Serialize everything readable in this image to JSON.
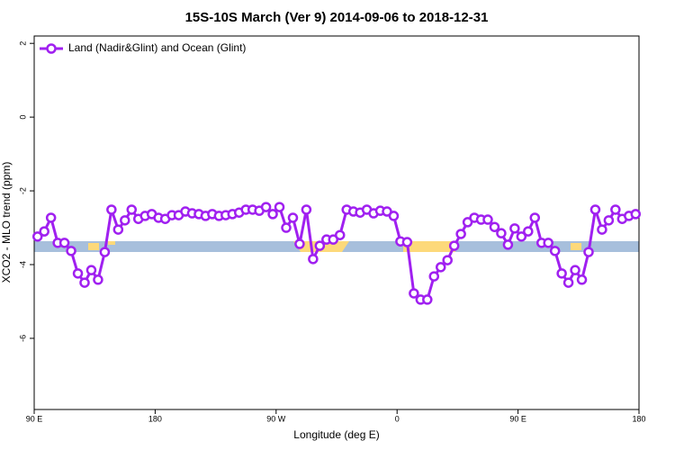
{
  "chart_data": {
    "type": "line",
    "title": "15S-10S March (Ver 9)   2014-09-06 to 2018-12-31",
    "x_label": "Longitude (deg E)",
    "y_label": "XCO2 - MLO trend (ppm)",
    "x": [
      92.5,
      97.5,
      102.5,
      107.5,
      112.5,
      117.5,
      122.5,
      127.5,
      132.5,
      137.5,
      142.5,
      147.5,
      152.5,
      157.5,
      162.5,
      167.5,
      172.5,
      177.5,
      182.5,
      187.5,
      192.5,
      197.5,
      202.5,
      207.5,
      212.5,
      217.5,
      222.5,
      227.5,
      232.5,
      237.5,
      242.5,
      247.5,
      252.5,
      257.5,
      262.5,
      267.5,
      272.5,
      277.5,
      282.5,
      287.5,
      292.5,
      297.5,
      302.5,
      307.5,
      312.5,
      317.5,
      322.5,
      327.5,
      332.5,
      337.5,
      342.5,
      347.5,
      352.5,
      357.5,
      362.5,
      367.5,
      372.5,
      377.5,
      382.5,
      387.5,
      392.5,
      397.5,
      402.5,
      407.5,
      412.5,
      417.5,
      422.5,
      427.5,
      432.5,
      437.5,
      442.5,
      447.5,
      452.5,
      457.5,
      462.5,
      467.5,
      472.5,
      477.5,
      482.5,
      487.5,
      492.5,
      497.5,
      502.5,
      507.5,
      512.5,
      517.5,
      522.5,
      527.5,
      532.5,
      537.5
    ],
    "series": [
      {
        "name": "Land (Nadir&Glint) and Ocean (Glint)",
        "color": "#a020f0",
        "values": [
          -3.24,
          -3.1,
          -2.73,
          -3.41,
          -3.41,
          -3.63,
          -4.24,
          -4.49,
          -4.15,
          -4.41,
          -3.66,
          -2.51,
          -3.05,
          -2.8,
          -2.51,
          -2.76,
          -2.68,
          -2.63,
          -2.73,
          -2.76,
          -2.66,
          -2.66,
          -2.56,
          -2.61,
          -2.63,
          -2.68,
          -2.63,
          -2.68,
          -2.66,
          -2.63,
          -2.59,
          -2.51,
          -2.51,
          -2.54,
          -2.44,
          -2.63,
          -2.44,
          -3.0,
          -2.73,
          -3.44,
          -2.51,
          -3.85,
          -3.49,
          -3.32,
          -3.32,
          -3.2,
          -2.51,
          -2.56,
          -2.59,
          -2.51,
          -2.61,
          -2.54,
          -2.56,
          -2.68,
          -3.37,
          -3.39,
          -4.78,
          -4.95,
          -4.95,
          -4.32,
          -4.07,
          -3.88,
          -3.49,
          -3.17,
          -2.85,
          -2.73,
          -2.78,
          -2.78,
          -2.98,
          -3.15,
          -3.46,
          -3.02,
          -3.24,
          -3.1,
          -2.73,
          -3.41,
          -3.41,
          -3.63,
          -4.24,
          -4.49,
          -4.15,
          -4.41,
          -3.66,
          -2.51,
          -3.05,
          -2.8,
          -2.51,
          -2.76,
          -2.68,
          -2.63
        ]
      }
    ],
    "xlim": [
      90,
      540
    ],
    "xticks": [
      {
        "value": 90,
        "label": "90 E"
      },
      180,
      {
        "value": 270,
        "label": "90 W"
      },
      {
        "value": 360,
        "label": "0"
      },
      {
        "value": 450,
        "label": "90 E"
      },
      {
        "value": 540,
        "label": "180"
      }
    ],
    "ylim": [
      -7.93,
      2.2
    ],
    "yticks": [
      -6,
      -4,
      -2,
      0,
      2
    ],
    "legend": "top-left"
  }
}
